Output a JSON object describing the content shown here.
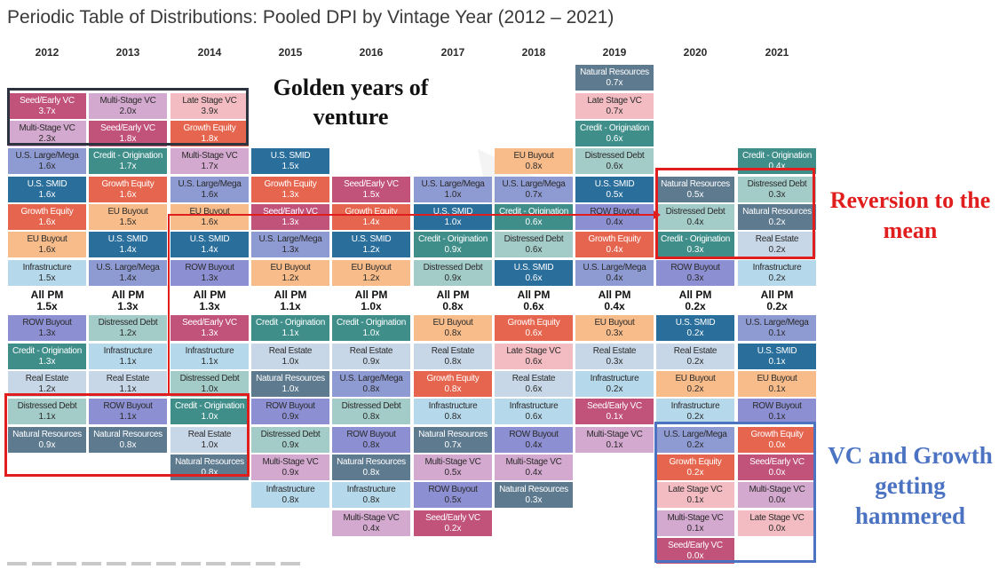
{
  "page": {
    "title": "Periodic Table of Distributions: Pooled DPI by Vintage Year (2012 – 2021)"
  },
  "colors": {
    "Seed/Early VC": "#c1527a",
    "Multi-Stage VC": "#d4a9cf",
    "Late Stage VC": "#f2bcc2",
    "Growth Equity": "#e6654e",
    "U.S. SMID": "#2a6e9c",
    "U.S. Large/Mega": "#8e9ad2",
    "ROW Buyout": "#8c8fd1",
    "EU Buyout": "#f8bc8a",
    "Credit - Origination": "#3f8e8a",
    "Distressed Debt": "#a3cbc8",
    "Natural Resources": "#5e7a8f",
    "Real Estate": "#c7d7e7",
    "Infrastructure": "#b5d8eb",
    "highlight_red": "#e01e1e",
    "highlight_navy": "#2e3340",
    "highlight_blue": "#4b73c2"
  },
  "light_text_categories": [
    "Seed/Early VC",
    "Growth Equity",
    "U.S. SMID",
    "Credit - Origination",
    "Natural Resources"
  ],
  "annotations": {
    "golden": "Golden years of venture",
    "reversion": "Reversion to the mean",
    "vc_growth": "VC and Growth getting hammered"
  },
  "chart_data": {
    "type": "table",
    "title": "Periodic Table of Distributions: Pooled DPI by Vintage Year (2012 – 2021)",
    "unit": "x (DPI multiple)",
    "columns": [
      {
        "year": "2012",
        "above": [
          [
            "Seed/Early VC",
            "3.7x"
          ],
          [
            "Multi-Stage VC",
            "2.3x"
          ],
          [
            "U.S. Large/Mega",
            "1.6x"
          ],
          [
            "U.S. SMID",
            "1.6x"
          ],
          [
            "Growth Equity",
            "1.6x"
          ],
          [
            "EU Buyout",
            "1.6x"
          ],
          [
            "Infrastructure",
            "1.5x"
          ]
        ],
        "all_pm": "1.5x",
        "below": [
          [
            "ROW Buyout",
            "1.3x"
          ],
          [
            "Credit - Origination",
            "1.3x"
          ],
          [
            "Real Estate",
            "1.2x"
          ],
          [
            "Distressed Debt",
            "1.1x"
          ],
          [
            "Natural Resources",
            "0.9x"
          ]
        ]
      },
      {
        "year": "2013",
        "above": [
          [
            "Multi-Stage VC",
            "2.0x"
          ],
          [
            "Seed/Early VC",
            "1.8x"
          ],
          [
            "Credit - Origination",
            "1.7x"
          ],
          [
            "Growth Equity",
            "1.6x"
          ],
          [
            "EU Buyout",
            "1.5x"
          ],
          [
            "U.S. SMID",
            "1.4x"
          ],
          [
            "U.S. Large/Mega",
            "1.4x"
          ]
        ],
        "all_pm": "1.3x",
        "below": [
          [
            "Distressed Debt",
            "1.2x"
          ],
          [
            "Infrastructure",
            "1.1x"
          ],
          [
            "Real Estate",
            "1.1x"
          ],
          [
            "ROW Buyout",
            "1.1x"
          ],
          [
            "Natural Resources",
            "0.8x"
          ]
        ]
      },
      {
        "year": "2014",
        "above": [
          [
            "Late Stage VC",
            "3.9x"
          ],
          [
            "Growth Equity",
            "1.8x"
          ],
          [
            "Multi-Stage VC",
            "1.7x"
          ],
          [
            "U.S. Large/Mega",
            "1.6x"
          ],
          [
            "EU Buyout",
            "1.6x"
          ],
          [
            "U.S. SMID",
            "1.4x"
          ],
          [
            "ROW Buyout",
            "1.3x"
          ]
        ],
        "all_pm": "1.3x",
        "below": [
          [
            "Seed/Early VC",
            "1.3x"
          ],
          [
            "Infrastructure",
            "1.1x"
          ],
          [
            "Distressed Debt",
            "1.0x"
          ],
          [
            "Credit - Origination",
            "1.0x"
          ],
          [
            "Real Estate",
            "1.0x"
          ],
          [
            "Natural Resources",
            "0.8x"
          ]
        ]
      },
      {
        "year": "2015",
        "above": [
          [
            "U.S. SMID",
            "1.5x"
          ],
          [
            "Growth Equity",
            "1.3x"
          ],
          [
            "Seed/Early VC",
            "1.3x"
          ],
          [
            "U.S. Large/Mega",
            "1.3x"
          ],
          [
            "EU Buyout",
            "1.2x"
          ]
        ],
        "all_pm": "1.1x",
        "below": [
          [
            "Credit - Origination",
            "1.1x"
          ],
          [
            "Real Estate",
            "1.0x"
          ],
          [
            "Natural Resources",
            "1.0x"
          ],
          [
            "ROW Buyout",
            "0.9x"
          ],
          [
            "Distressed Debt",
            "0.9x"
          ],
          [
            "Multi-Stage VC",
            "0.9x"
          ],
          [
            "Infrastructure",
            "0.8x"
          ]
        ]
      },
      {
        "year": "2016",
        "above": [
          [
            "Seed/Early VC",
            "1.5x"
          ],
          [
            "Growth Equity",
            "1.4x"
          ],
          [
            "U.S. SMID",
            "1.2x"
          ],
          [
            "EU Buyout",
            "1.2x"
          ]
        ],
        "all_pm": "1.0x",
        "below": [
          [
            "Credit - Origination",
            "1.0x"
          ],
          [
            "Real Estate",
            "0.9x"
          ],
          [
            "U.S. Large/Mega",
            "0.8x"
          ],
          [
            "Distressed Debt",
            "0.8x"
          ],
          [
            "ROW Buyout",
            "0.8x"
          ],
          [
            "Natural Resources",
            "0.8x"
          ],
          [
            "Infrastructure",
            "0.8x"
          ],
          [
            "Multi-Stage VC",
            "0.4x"
          ]
        ]
      },
      {
        "year": "2017",
        "above": [
          [
            "U.S. Large/Mega",
            "1.0x"
          ],
          [
            "U.S. SMID",
            "1.0x"
          ],
          [
            "Credit - Origination",
            "0.9x"
          ],
          [
            "Distressed Debt",
            "0.9x"
          ]
        ],
        "all_pm": "0.8x",
        "below": [
          [
            "EU Buyout",
            "0.8x"
          ],
          [
            "Real Estate",
            "0.8x"
          ],
          [
            "Growth Equity",
            "0.8x"
          ],
          [
            "Infrastructure",
            "0.8x"
          ],
          [
            "Natural Resources",
            "0.7x"
          ],
          [
            "Multi-Stage VC",
            "0.5x"
          ],
          [
            "ROW Buyout",
            "0.5x"
          ],
          [
            "Seed/Early VC",
            "0.2x"
          ]
        ]
      },
      {
        "year": "2018",
        "above": [
          [
            "EU Buyout",
            "0.8x"
          ],
          [
            "U.S. Large/Mega",
            "0.7x"
          ],
          [
            "Credit - Origination",
            "0.6x"
          ],
          [
            "Distressed Debt",
            "0.6x"
          ],
          [
            "U.S. SMID",
            "0.6x"
          ]
        ],
        "all_pm": "0.6x",
        "below": [
          [
            "Growth Equity",
            "0.6x"
          ],
          [
            "Late Stage VC",
            "0.6x"
          ],
          [
            "Real Estate",
            "0.6x"
          ],
          [
            "Infrastructure",
            "0.6x"
          ],
          [
            "ROW Buyout",
            "0.4x"
          ],
          [
            "Multi-Stage VC",
            "0.4x"
          ],
          [
            "Natural Resources",
            "0.3x"
          ]
        ]
      },
      {
        "year": "2019",
        "above": [
          [
            "Natural Resources",
            "0.7x"
          ],
          [
            "Late Stage VC",
            "0.7x"
          ],
          [
            "Credit - Origination",
            "0.6x"
          ],
          [
            "Distressed Debt",
            "0.6x"
          ],
          [
            "U.S. SMID",
            "0.5x"
          ],
          [
            "ROW Buyout",
            "0.4x"
          ],
          [
            "Growth Equity",
            "0.4x"
          ],
          [
            "U.S. Large/Mega",
            "0.4x"
          ]
        ],
        "all_pm": "0.4x",
        "below": [
          [
            "EU Buyout",
            "0.3x"
          ],
          [
            "Real Estate",
            "0.3x"
          ],
          [
            "Infrastructure",
            "0.2x"
          ],
          [
            "Seed/Early VC",
            "0.1x"
          ],
          [
            "Multi-Stage VC",
            "0.1x"
          ]
        ]
      },
      {
        "year": "2020",
        "above": [
          [
            "Natural Resources",
            "0.5x"
          ],
          [
            "Distressed Debt",
            "0.4x"
          ],
          [
            "Credit - Origination",
            "0.3x"
          ],
          [
            "ROW Buyout",
            "0.3x"
          ]
        ],
        "all_pm": "0.2x",
        "below": [
          [
            "U.S. SMID",
            "0.2x"
          ],
          [
            "Real Estate",
            "0.2x"
          ],
          [
            "EU Buyout",
            "0.2x"
          ],
          [
            "Infrastructure",
            "0.2x"
          ],
          [
            "U.S. Large/Mega",
            "0.2x"
          ],
          [
            "Growth Equity",
            "0.2x"
          ],
          [
            "Late Stage VC",
            "0.1x"
          ],
          [
            "Multi-Stage VC",
            "0.1x"
          ],
          [
            "Seed/Early VC",
            "0.0x"
          ]
        ]
      },
      {
        "year": "2021",
        "above": [
          [
            "Credit - Origination",
            "0.4x"
          ],
          [
            "Distressed Debt",
            "0.3x"
          ],
          [
            "Natural Resources",
            "0.2x"
          ],
          [
            "Real Estate",
            "0.2x"
          ],
          [
            "Infrastructure",
            "0.2x"
          ]
        ],
        "all_pm": "0.2x",
        "below": [
          [
            "U.S. Large/Mega",
            "0.1x"
          ],
          [
            "U.S. SMID",
            "0.1x"
          ],
          [
            "EU Buyout",
            "0.1x"
          ],
          [
            "ROW Buyout",
            "0.1x"
          ],
          [
            "Growth Equity",
            "0.0x"
          ],
          [
            "Seed/Early VC",
            "0.0x"
          ],
          [
            "Multi-Stage VC",
            "0.0x"
          ],
          [
            "Late Stage VC",
            "0.0x"
          ]
        ]
      }
    ],
    "all_pm_label": "All PM"
  }
}
